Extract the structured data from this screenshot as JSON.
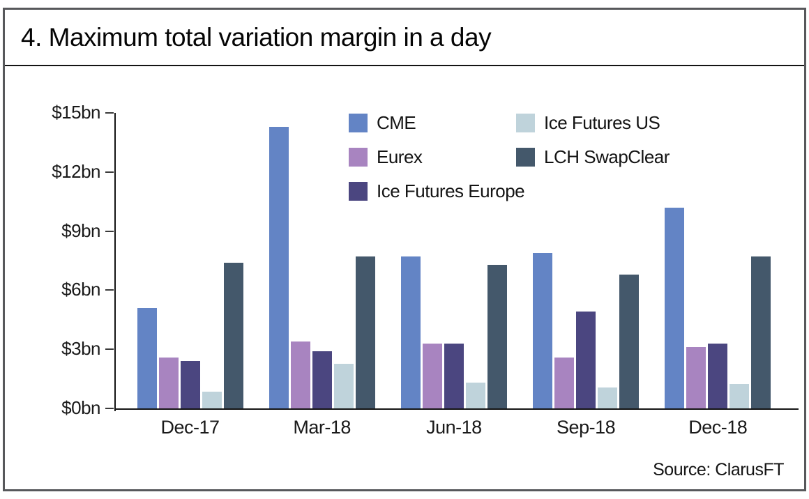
{
  "title": "4. Maximum total variation margin in a day",
  "source": "Source: ClarusFT",
  "colors": {
    "frame": "#57585b",
    "axis": "#141414",
    "text": "#1a1a1a",
    "cme": "#6384C5",
    "eurex": "#A884C0",
    "ice_futures_europe": "#4B4680",
    "ice_futures_us": "#BFD3DB",
    "lch_swapclear": "#44586B"
  },
  "chart_data": {
    "type": "bar",
    "title": "4. Maximum total variation margin in a day",
    "categories": [
      "Dec-17",
      "Mar-18",
      "Jun-18",
      "Sep-18",
      "Dec-18"
    ],
    "series": [
      {
        "name": "CME",
        "color": "#6384C5",
        "values": [
          5.1,
          14.3,
          7.7,
          7.9,
          10.2
        ]
      },
      {
        "name": "Eurex",
        "color": "#A884C0",
        "values": [
          2.6,
          3.4,
          3.3,
          2.6,
          3.1
        ]
      },
      {
        "name": "Ice Futures Europe",
        "color": "#4B4680",
        "values": [
          2.4,
          2.9,
          3.3,
          4.9,
          3.3
        ]
      },
      {
        "name": "Ice Futures US",
        "color": "#BFD3DB",
        "values": [
          0.85,
          2.25,
          1.3,
          1.05,
          1.25
        ]
      },
      {
        "name": "LCH SwapClear",
        "color": "#44586B",
        "values": [
          7.4,
          7.7,
          7.3,
          6.8,
          7.7
        ]
      }
    ],
    "xlabel": "",
    "ylabel": "",
    "units": "USD billions per day",
    "y_ticks": [
      "$15bn",
      "$12bn",
      "$9bn",
      "$6bn",
      "$3bn",
      "$0bn"
    ],
    "y_tick_values": [
      15,
      12,
      9,
      6,
      3,
      0
    ],
    "ylim": [
      0,
      15
    ],
    "grid": false,
    "legend_position": "top-center",
    "legend_columns": [
      [
        0,
        1,
        2
      ],
      [
        3,
        4
      ]
    ]
  }
}
